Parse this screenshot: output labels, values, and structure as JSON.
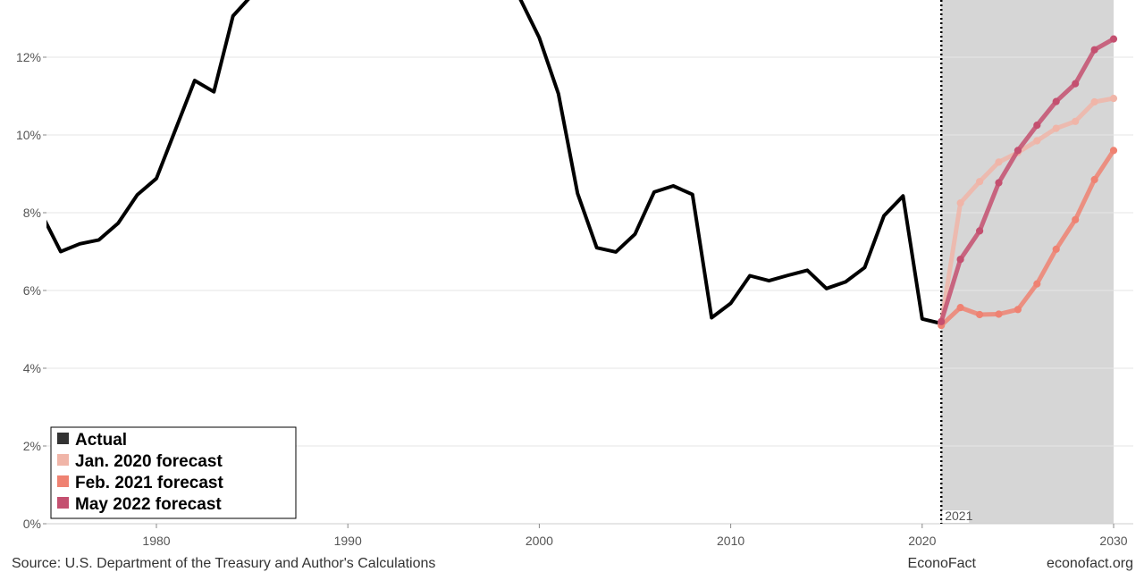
{
  "chart_data": {
    "type": "line",
    "title": "",
    "xlabel": "",
    "ylabel": "",
    "xlim": [
      1974,
      2031
    ],
    "ylim": [
      0,
      13.5
    ],
    "x_ticks": [
      1980,
      1990,
      2000,
      2010,
      2020,
      2030
    ],
    "y_ticks": [
      0,
      2,
      4,
      6,
      8,
      10,
      12
    ],
    "y_tick_labels": [
      "0%",
      "2%",
      "4%",
      "6%",
      "8%",
      "10%",
      "12%"
    ],
    "x_tick_labels": [
      "1980",
      "1990",
      "2000",
      "2010",
      "2020",
      "2030"
    ],
    "grid": true,
    "forecast_region": {
      "start": 2021,
      "end": 2030,
      "color": "#d6d6d6"
    },
    "reference_line": {
      "x": 2021,
      "label": "2021"
    },
    "legend_position": "bottom-left",
    "series": [
      {
        "name": "Actual",
        "color": "#000000",
        "markers": false,
        "x": [
          1974,
          1975,
          1976,
          1977,
          1978,
          1979,
          1980,
          1981,
          1982,
          1983,
          1984,
          1985,
          1986,
          1987,
          1988,
          1989,
          1990,
          1991,
          1992,
          1993,
          1994,
          1995,
          1996,
          1997,
          1998,
          1999,
          2000,
          2001,
          2002,
          2003,
          2004,
          2005,
          2006,
          2007,
          2008,
          2009,
          2010,
          2011,
          2012,
          2013,
          2014,
          2015,
          2016,
          2017,
          2018,
          2019,
          2020,
          2021
        ],
        "values": [
          7.97,
          7.0,
          7.2,
          7.3,
          7.73,
          8.46,
          8.88,
          10.14,
          11.4,
          11.11,
          13.06,
          13.6,
          14.0,
          14.1,
          14.2,
          14.4,
          14.5,
          14.5,
          14.4,
          14.3,
          14.2,
          14.3,
          14.3,
          14.3,
          14.1,
          13.5,
          12.5,
          11.06,
          8.5,
          7.1,
          6.99,
          7.45,
          8.53,
          8.69,
          8.47,
          5.3,
          5.67,
          6.38,
          6.25,
          6.39,
          6.52,
          6.05,
          6.22,
          6.59,
          7.92,
          8.43,
          5.27,
          5.15
        ]
      },
      {
        "name": "Jan. 2020 forecast",
        "color": "#f0b5a8",
        "markers": true,
        "x": [
          2021,
          2022,
          2023,
          2024,
          2025,
          2026,
          2027,
          2028,
          2029,
          2030
        ],
        "values": [
          5.15,
          8.25,
          8.8,
          9.3,
          9.55,
          9.85,
          10.17,
          10.35,
          10.85,
          10.94
        ]
      },
      {
        "name": "Feb. 2021 forecast",
        "color": "#ef8272",
        "markers": true,
        "x": [
          2021,
          2022,
          2023,
          2024,
          2025,
          2026,
          2027,
          2028,
          2029,
          2030
        ],
        "values": [
          5.1,
          5.56,
          5.38,
          5.39,
          5.51,
          6.17,
          7.06,
          7.82,
          8.85,
          9.6
        ]
      },
      {
        "name": "May 2022 forecast",
        "color": "#c45070",
        "markers": true,
        "x": [
          2021,
          2022,
          2023,
          2024,
          2025,
          2026,
          2027,
          2028,
          2029,
          2030
        ],
        "values": [
          5.2,
          6.8,
          7.53,
          8.77,
          9.6,
          10.25,
          10.86,
          11.32,
          12.19,
          12.47
        ]
      }
    ]
  },
  "footer": {
    "source": "Source: U.S. Department of the Treasury and Author's Calculations",
    "brand": "EconoFact",
    "site": "econofact.org"
  }
}
